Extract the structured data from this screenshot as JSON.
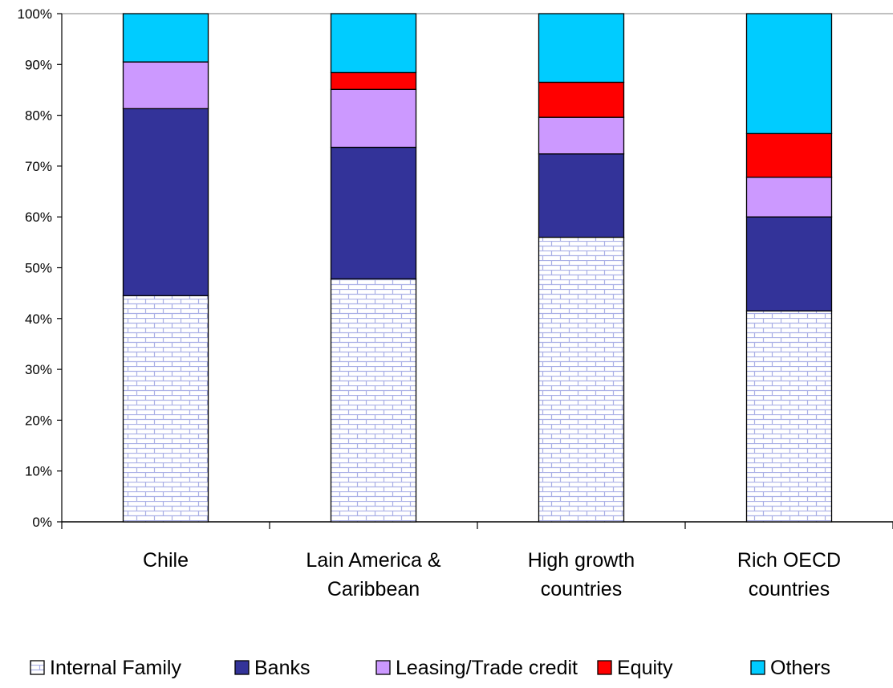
{
  "chart_data": {
    "type": "bar",
    "stacked": true,
    "percent": true,
    "categories": [
      [
        "Chile"
      ],
      [
        "Lain America &",
        "Caribbean"
      ],
      [
        "High growth",
        "countries"
      ],
      [
        "Rich OECD",
        "countries"
      ]
    ],
    "series": [
      {
        "name": "Internal Family",
        "values": [
          44.5,
          47.8,
          56.0,
          41.5
        ],
        "color": "#ffffff",
        "pattern": "brick",
        "pattern_color": "#aab0e6"
      },
      {
        "name": "Banks",
        "values": [
          36.8,
          25.9,
          16.4,
          18.5
        ],
        "color": "#333399"
      },
      {
        "name": "Leasing/Trade credit",
        "values": [
          9.2,
          11.4,
          7.2,
          7.8
        ],
        "color": "#cc99ff"
      },
      {
        "name": "Equity",
        "values": [
          0,
          3.3,
          6.9,
          8.6
        ],
        "color": "#ff0000"
      },
      {
        "name": "Others",
        "values": [
          9.5,
          11.6,
          13.5,
          23.6
        ],
        "color": "#00ccff"
      }
    ],
    "yticks": [
      "0%",
      "10%",
      "20%",
      "30%",
      "40%",
      "50%",
      "60%",
      "70%",
      "80%",
      "90%",
      "100%"
    ],
    "ylim": [
      0,
      100
    ],
    "xlabel": "",
    "ylabel": "",
    "title": "",
    "legend_position": "bottom",
    "grid": false
  }
}
